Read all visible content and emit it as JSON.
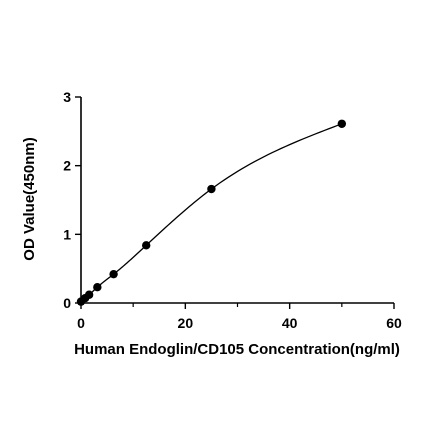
{
  "chart_data": {
    "type": "scatter",
    "title": "",
    "xlabel": "Human Endoglin/CD105 Concentration(ng/ml)",
    "ylabel": "OD Value(450nm)",
    "xlim": [
      0,
      60
    ],
    "ylim": [
      0,
      3
    ],
    "xticks": [
      0,
      20,
      40,
      60
    ],
    "yticks": [
      0,
      1,
      2,
      3
    ],
    "grid": false,
    "fit_curve": true,
    "series": [
      {
        "x": [
          0,
          0.78,
          1.56,
          3.13,
          6.25,
          12.5,
          25,
          50
        ],
        "y": [
          0.02,
          0.07,
          0.12,
          0.23,
          0.42,
          0.84,
          1.66,
          2.61
        ]
      }
    ]
  }
}
